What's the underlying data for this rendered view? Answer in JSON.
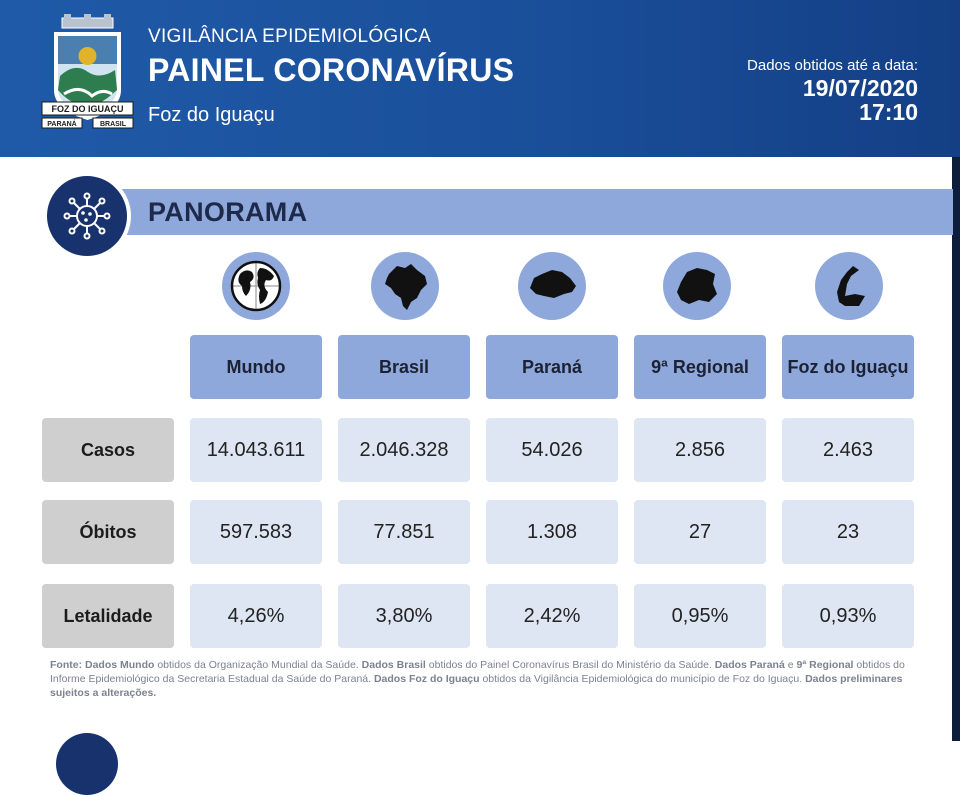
{
  "header": {
    "subtitle": "VIGILÂNCIA EPIDEMIOLÓGICA",
    "title": "PAINEL CORONAVÍRUS",
    "city": "Foz do Iguaçu",
    "data_label": "Dados obtidos até a data:",
    "date": "19/07/2020",
    "time": "17:10",
    "crest": {
      "banner_text": "FOZ DO IGUAÇU",
      "left_text": "PARANÁ",
      "right_text": "BRASIL"
    }
  },
  "section": {
    "title": "PANORAMA",
    "icon": "virus-icon"
  },
  "columns": [
    {
      "label": "Mundo",
      "icon": "globe-icon"
    },
    {
      "label": "Brasil",
      "icon": "brazil-map-icon"
    },
    {
      "label": "Paraná",
      "icon": "parana-map-icon"
    },
    {
      "label": "9ª Regional",
      "icon": "regional-map-icon"
    },
    {
      "label": "Foz do Iguaçu",
      "icon": "foz-map-icon"
    }
  ],
  "rows": [
    {
      "label": "Casos",
      "values": [
        "14.043.611",
        "2.046.328",
        "54.026",
        "2.856",
        "2.463"
      ]
    },
    {
      "label": "Óbitos",
      "values": [
        "597.583",
        "77.851",
        "1.308",
        "27",
        "23"
      ]
    },
    {
      "label": "Letalidade",
      "values": [
        "4,26%",
        "3,80%",
        "2,42%",
        "0,95%",
        "0,93%"
      ]
    }
  ],
  "footnote": {
    "s1_bold": "Fonte: Dados Mundo",
    "s1": " obtidos da Organização Mundial da Saúde. ",
    "s2_bold": "Dados Brasil",
    "s2": " obtidos do Painel Coronavírus Brasil do Ministério da Saúde. ",
    "s3_bold": "Dados Paraná",
    "s3": " e ",
    "s4_bold": "9ª Regional",
    "s4": " obtidos do Informe Epidemiológico da Secretaria Estadual da Saúde do Paraná.  ",
    "s5_bold": "Dados Foz do Iguaçu",
    "s5": " obtidos da Vigilância Epidemiológica do município de Foz do Iguaçu.  ",
    "s6_bold": "Dados preliminares sujeitos a alterações."
  },
  "colors": {
    "header_blue": "#1a4f9a",
    "accent_light_blue": "#8fa8dc",
    "dark_navy": "#17326d",
    "cell_bg": "#dfe6f3",
    "label_gray": "#cfcfcf"
  }
}
